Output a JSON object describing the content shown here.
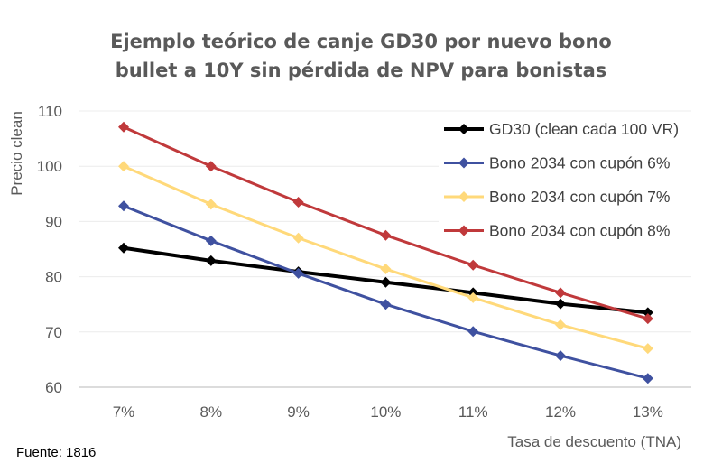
{
  "chart_data": {
    "type": "line",
    "title": "Ejemplo teórico de canje GD30 por nuevo bono bullet a 10Y sin pérdida de NPV para bonistas",
    "title_lines": [
      "Ejemplo teórico de canje GD30 por nuevo bono",
      "bullet a 10Y sin pérdida de NPV para bonistas"
    ],
    "xlabel": "Tasa de descuento (TNA)",
    "ylabel": "Precio clean",
    "categories": [
      "7%",
      "8%",
      "9%",
      "10%",
      "11%",
      "12%",
      "13%"
    ],
    "ylim": [
      60,
      110
    ],
    "yticks": [
      60,
      70,
      80,
      90,
      100,
      110
    ],
    "grid": true,
    "legend_position": "top-right",
    "series": [
      {
        "name": "GD30 (clean cada 100 VR)",
        "color": "#000000",
        "values": [
          85.2,
          82.9,
          80.9,
          79.0,
          77.1,
          75.1,
          73.5
        ]
      },
      {
        "name": "Bono 2034 con cupón 6%",
        "color": "#3F51A0",
        "values": [
          92.8,
          86.5,
          80.6,
          75.0,
          70.1,
          65.7,
          61.6
        ]
      },
      {
        "name": "Bono 2034 con cupón 7%",
        "color": "#FFD97A",
        "values": [
          100.0,
          93.1,
          87.0,
          81.4,
          76.2,
          71.3,
          67.0
        ]
      },
      {
        "name": "Bono 2034 con cupón 8%",
        "color": "#C0393B",
        "values": [
          107.1,
          100.0,
          93.5,
          87.5,
          82.1,
          77.1,
          72.4
        ]
      }
    ]
  },
  "source_note": "Fuente: 1816"
}
